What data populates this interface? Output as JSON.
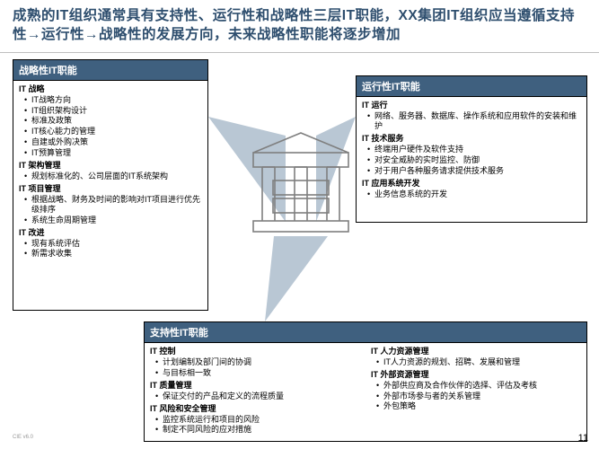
{
  "title_color": "#2e4e6e",
  "header_bg": "#3f607f",
  "divider_color": "#bfbfbf",
  "triangle_fill": "#b9c7d4",
  "building_stroke": "#7f7f7f",
  "title": "成熟的IT组织通常具有支持性、运行性和战略性三层IT职能，XX集团IT组织应当遵循支持性→运行性→战略性的发展方向，未来战略性职能将逐步增加",
  "page_number": "11",
  "footer_mark": "CIE v6.0",
  "boxA": {
    "header": "战略性IT职能",
    "sections": [
      {
        "title": "IT 战略",
        "items": [
          "IT战略方向",
          "IT组织架构设计",
          "标准及政策",
          "IT核心能力的管理",
          "自建或外购决策",
          "IT预算管理"
        ]
      },
      {
        "title": "IT 架构管理",
        "items": [
          "规划标准化的、公司层面的IT系统架构"
        ]
      },
      {
        "title": "IT 项目管理",
        "items": [
          "根据战略、财务及时间的影响对IT项目进行优先级排序",
          "系统生命周期管理"
        ]
      },
      {
        "title": "IT 改进",
        "items": [
          "现有系统评估",
          "新需求收集"
        ]
      }
    ]
  },
  "boxB": {
    "header": "运行性IT职能",
    "sections": [
      {
        "title": "IT 运行",
        "items": [
          "网络、服务器、数据库、操作系统和应用软件的安装和维护"
        ]
      },
      {
        "title": "IT 技术服务",
        "items": [
          "终端用户硬件及软件支持",
          "对安全威胁的实时监控、防御",
          "对于用户各种服务请求提供技术服务"
        ]
      },
      {
        "title": "IT 应用系统开发",
        "items": [
          "业务信息系统的开发"
        ]
      }
    ]
  },
  "boxC": {
    "header": "支持性IT职能",
    "left": [
      {
        "title": "IT 控制",
        "items": [
          "计划编制及部门间的协调",
          "与目标相一致"
        ]
      },
      {
        "title": "IT 质量管理",
        "items": [
          "保证交付的产品和定义的流程质量"
        ]
      },
      {
        "title": "IT 风险和安全管理",
        "items": [
          "监控系统运行和项目的风险",
          "制定不同风险的应对措施"
        ]
      }
    ],
    "right": [
      {
        "title": "IT 人力资源管理",
        "items": [
          "IT人力资源的规划、招聘、发展和管理"
        ]
      },
      {
        "title": "IT 外部资源管理",
        "items": [
          "外部供应商及合作伙伴的选择、评估及考核",
          "外部市场参与者的关系管理",
          "外包策略"
        ]
      }
    ]
  }
}
